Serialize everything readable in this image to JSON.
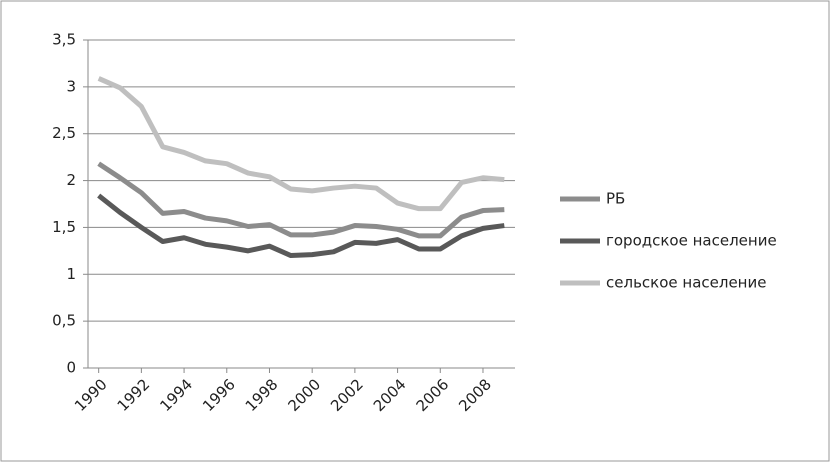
{
  "chart_data": {
    "type": "line",
    "x": [
      1990,
      1991,
      1992,
      1993,
      1994,
      1995,
      1996,
      1997,
      1998,
      1999,
      2000,
      2001,
      2002,
      2003,
      2004,
      2005,
      2006,
      2007,
      2008,
      2009
    ],
    "xlim": [
      1989.5,
      2009.5
    ],
    "xticks": [
      1990,
      1992,
      1994,
      1996,
      1998,
      2000,
      2002,
      2004,
      2006,
      2008
    ],
    "ylim": [
      0,
      3.5
    ],
    "yticks": [
      0,
      {
        "value": 0.5,
        "label": "0,5"
      },
      1,
      {
        "value": 1.5,
        "label": "1,5"
      },
      2,
      {
        "value": 2.5,
        "label": "2,5"
      },
      3,
      {
        "value": 3.5,
        "label": "3,5"
      }
    ],
    "grid": true,
    "legend": "right",
    "series": [
      {
        "name": "РБ",
        "color": "#8c8c8c",
        "values": [
          2.18,
          2.03,
          1.87,
          1.65,
          1.67,
          1.6,
          1.57,
          1.51,
          1.53,
          1.42,
          1.42,
          1.45,
          1.52,
          1.51,
          1.48,
          1.41,
          1.41,
          1.61,
          1.68,
          1.69
        ]
      },
      {
        "name": "городское население",
        "color": "#595959",
        "values": [
          1.84,
          1.66,
          1.5,
          1.35,
          1.39,
          1.32,
          1.29,
          1.25,
          1.3,
          1.2,
          1.21,
          1.24,
          1.34,
          1.33,
          1.37,
          1.27,
          1.27,
          1.41,
          1.49,
          1.52
        ]
      },
      {
        "name": "сельское население",
        "color": "#bfbfbf",
        "values": [
          3.09,
          2.99,
          2.79,
          2.36,
          2.3,
          2.21,
          2.18,
          2.08,
          2.04,
          1.91,
          1.89,
          1.92,
          1.94,
          1.92,
          1.76,
          1.7,
          1.7,
          1.98,
          2.03,
          2.01
        ]
      }
    ]
  }
}
